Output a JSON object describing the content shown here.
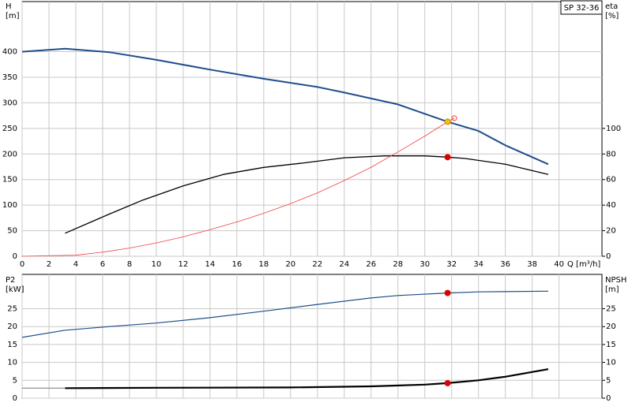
{
  "chart_data": [
    {
      "type": "line",
      "legend_label": "SP 32-36",
      "ylabel": "H",
      "yunit": "[m]",
      "y2label": "eta",
      "y2unit": "[%]",
      "xlabel": "Q [m³/h]",
      "xlim": [
        0,
        43.2
      ],
      "xticks": [
        0,
        2,
        4,
        6,
        8,
        10,
        12,
        14,
        16,
        18,
        20,
        22,
        24,
        26,
        28,
        30,
        32,
        34,
        36,
        38,
        40
      ],
      "ylim": [
        0,
        498
      ],
      "yticks": [
        0,
        50,
        100,
        150,
        200,
        250,
        300,
        350,
        400
      ],
      "y2lim": [
        0,
        199.2
      ],
      "y2ticks": [
        0,
        20,
        40,
        60,
        80,
        100
      ],
      "grid": true,
      "xtick_labels": true,
      "series": [
        {
          "color": "#1f4e8c",
          "width": 2,
          "x": [
            0,
            3.2,
            6.5,
            10,
            14,
            18,
            22,
            24,
            28,
            31.7,
            34,
            36,
            39.2
          ],
          "values": [
            400,
            406,
            399,
            384,
            365,
            347,
            331,
            320,
            297,
            263,
            245,
            217,
            180
          ]
        },
        {
          "color": "#000000",
          "width": 1.3,
          "axis": "y2",
          "x": [
            3.2,
            6.5,
            9,
            12,
            15,
            18,
            21,
            24,
            27,
            30,
            31.7,
            33,
            36,
            39.2
          ],
          "values": [
            18,
            33,
            44,
            55,
            64,
            69.5,
            73,
            77,
            78.5,
            78.5,
            77.5,
            76.5,
            72,
            64
          ]
        },
        {
          "color": "#f04040",
          "width": 0.8,
          "x": [
            0,
            4,
            6,
            8,
            10,
            12,
            14,
            16,
            18,
            20,
            22,
            24,
            26,
            28,
            30,
            31.7,
            32.2
          ],
          "values": [
            0,
            2,
            8,
            16,
            26,
            38,
            52,
            67,
            84,
            103,
            124,
            148,
            174,
            204,
            235,
            263,
            270
          ]
        }
      ],
      "markers": [
        {
          "x": 32.2,
          "y": 270,
          "color": "#f04040",
          "filled": false
        },
        {
          "x": 31.7,
          "y": 263,
          "color": "#f5c400",
          "filled": true
        },
        {
          "x": 31.7,
          "y": 77.5,
          "axis": "y2",
          "color": "#e00000",
          "filled": true
        }
      ]
    },
    {
      "type": "line",
      "ylabel": "P2",
      "yunit": "[kW]",
      "y2label": "NPSH",
      "y2unit": "[m]",
      "xlim": [
        0,
        43.2
      ],
      "xticks": [
        0,
        2,
        4,
        6,
        8,
        10,
        12,
        14,
        16,
        18,
        20,
        22,
        24,
        26,
        28,
        30,
        32,
        34,
        36,
        38,
        40
      ],
      "ylim": [
        0,
        34.6
      ],
      "yticks": [
        0,
        5,
        10,
        15,
        20,
        25
      ],
      "y2lim": [
        0,
        34.6
      ],
      "y2ticks": [
        0,
        5,
        10,
        15,
        20,
        25
      ],
      "grid": true,
      "xtick_labels": false,
      "series": [
        {
          "color": "#1f4e8c",
          "width": 1.2,
          "x": [
            0,
            3.2,
            6.5,
            10,
            14,
            18,
            22,
            26,
            28,
            31.7,
            34,
            39.2
          ],
          "values": [
            17,
            19,
            20,
            21,
            22.5,
            24.3,
            26.2,
            28,
            28.7,
            29.4,
            29.7,
            29.9
          ]
        },
        {
          "color": "#777777",
          "width": 1,
          "axis": "y2",
          "x": [
            0,
            3.2
          ],
          "values": [
            2.8,
            2.8
          ]
        },
        {
          "color": "#000000",
          "width": 2.2,
          "axis": "y2",
          "x": [
            3.2,
            10,
            20,
            26,
            30,
            31.7,
            34,
            36,
            39.2
          ],
          "values": [
            2.8,
            2.9,
            3.0,
            3.3,
            3.8,
            4.2,
            5,
            6,
            8.1
          ]
        }
      ],
      "markers": [
        {
          "x": 31.7,
          "y": 29.4,
          "color": "#e00000",
          "filled": true
        },
        {
          "x": 31.7,
          "y": 4.2,
          "axis": "y2",
          "color": "#e00000",
          "filled": true
        }
      ]
    }
  ]
}
